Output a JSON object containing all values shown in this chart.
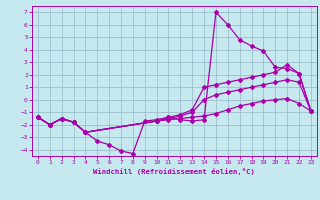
{
  "xlabel": "Windchill (Refroidissement éolien,°C)",
  "xlim": [
    -0.5,
    23.5
  ],
  "ylim": [
    -4.5,
    7.5
  ],
  "yticks": [
    -4,
    -3,
    -2,
    -1,
    0,
    1,
    2,
    3,
    4,
    5,
    6,
    7
  ],
  "xticks": [
    0,
    1,
    2,
    3,
    4,
    5,
    6,
    7,
    8,
    9,
    10,
    11,
    12,
    13,
    14,
    15,
    16,
    17,
    18,
    19,
    20,
    21,
    22,
    23
  ],
  "bg_color": "#c6e8ef",
  "grid_color": "#9bbfcc",
  "line_color": "#aa00aa",
  "line1_x": [
    0,
    1,
    2,
    3,
    4,
    5,
    6,
    7,
    8,
    9,
    10,
    11,
    12,
    13,
    14,
    15,
    16,
    17,
    18,
    19,
    20,
    21,
    22,
    23
  ],
  "line1_y": [
    -1.4,
    -2.0,
    -1.5,
    -1.8,
    -2.6,
    -3.3,
    -3.6,
    -4.1,
    -4.3,
    -1.7,
    -1.6,
    -1.4,
    -1.6,
    -1.7,
    -1.6,
    7.0,
    6.0,
    4.8,
    4.3,
    3.9,
    2.6,
    2.5,
    2.1,
    -0.9
  ],
  "line2_x": [
    0,
    1,
    2,
    3,
    4,
    10,
    11,
    12,
    13,
    14,
    15,
    16,
    17,
    18,
    19,
    20,
    21,
    22,
    23
  ],
  "line2_y": [
    -1.4,
    -2.0,
    -1.5,
    -1.8,
    -2.6,
    -1.7,
    -1.4,
    -1.2,
    -0.8,
    1.0,
    1.2,
    1.4,
    1.6,
    1.8,
    2.0,
    2.2,
    2.8,
    2.1,
    -0.9
  ],
  "line3_x": [
    0,
    1,
    2,
    3,
    4,
    10,
    11,
    12,
    13,
    14,
    15,
    16,
    17,
    18,
    19,
    20,
    21,
    22,
    23
  ],
  "line3_y": [
    -1.4,
    -2.0,
    -1.5,
    -1.8,
    -2.6,
    -1.7,
    -1.5,
    -1.3,
    -1.0,
    0.0,
    0.4,
    0.6,
    0.8,
    1.0,
    1.2,
    1.4,
    1.6,
    1.4,
    -0.9
  ],
  "line4_x": [
    0,
    1,
    2,
    3,
    4,
    10,
    11,
    12,
    13,
    14,
    15,
    16,
    17,
    18,
    19,
    20,
    21,
    22,
    23
  ],
  "line4_y": [
    -1.4,
    -2.0,
    -1.5,
    -1.8,
    -2.6,
    -1.7,
    -1.6,
    -1.5,
    -1.4,
    -1.3,
    -1.1,
    -0.8,
    -0.5,
    -0.3,
    -0.1,
    0.0,
    0.1,
    -0.3,
    -0.9
  ]
}
